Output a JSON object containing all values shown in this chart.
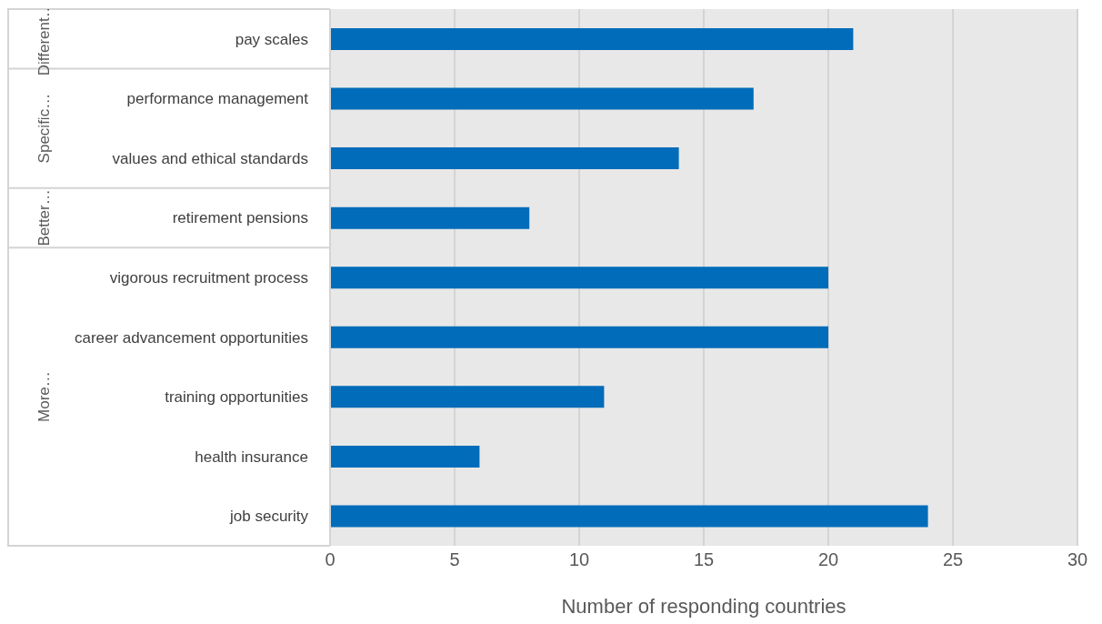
{
  "chart_data": {
    "type": "bar",
    "orientation": "horizontal",
    "xlabel": "Number of responding countries",
    "categories": [
      "pay scales",
      "performance management",
      "values and ethical standards",
      "retirement pensions",
      "vigorous recruitment process",
      "career advancement opportunities",
      "training opportunities",
      "health insurance",
      "job security"
    ],
    "values": [
      21,
      17,
      14,
      8,
      20,
      20,
      11,
      6,
      24
    ],
    "color": "#006cba",
    "xlim": [
      0,
      30
    ],
    "xticks": [
      0,
      5,
      10,
      15,
      20,
      25,
      30
    ],
    "grid": "x",
    "annotations": [
      "Different…",
      "Specific…",
      "Better…",
      "More…"
    ]
  }
}
